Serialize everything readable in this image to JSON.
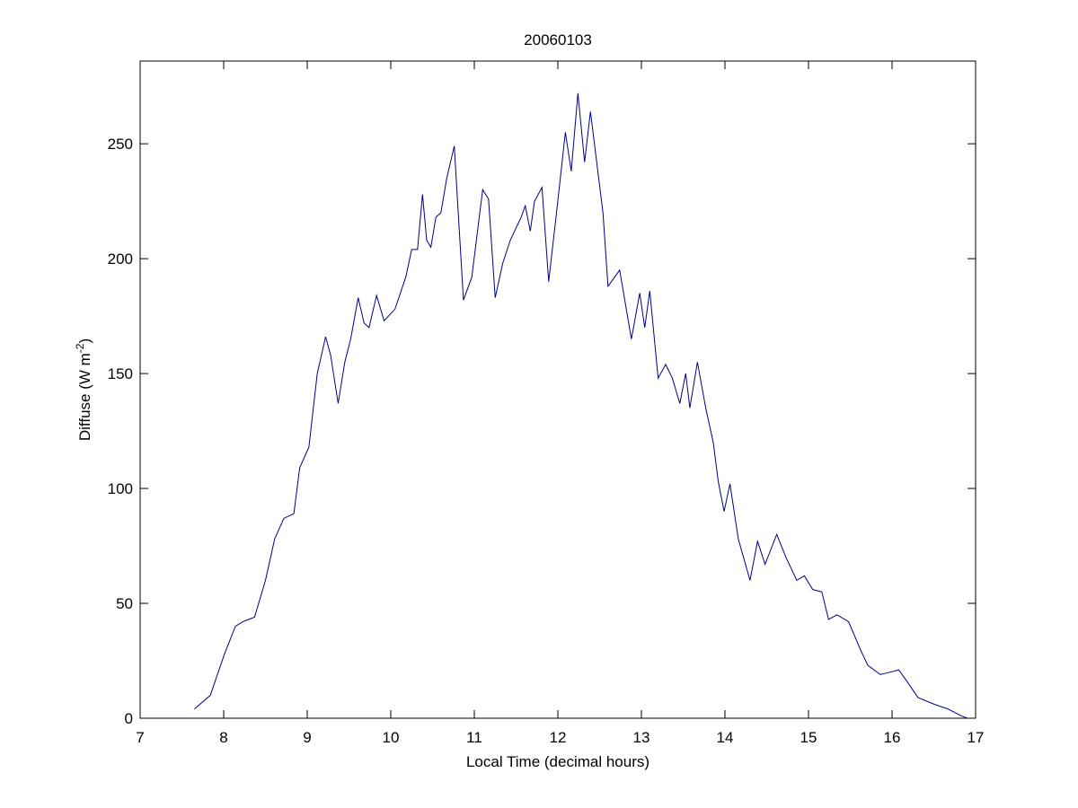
{
  "chart_data": {
    "type": "line",
    "title": "20060103",
    "xlabel": "Local Time (decimal hours)",
    "ylabel": [
      "Diffuse (W m",
      "-2",
      ")"
    ],
    "x": [
      7.65,
      7.84,
      8.01,
      8.14,
      8.23,
      8.37,
      8.5,
      8.61,
      8.72,
      8.84,
      8.91,
      9.02,
      9.12,
      9.22,
      9.28,
      9.37,
      9.45,
      9.52,
      9.61,
      9.68,
      9.74,
      9.83,
      9.92,
      10.05,
      10.18,
      10.25,
      10.32,
      10.38,
      10.43,
      10.48,
      10.54,
      10.6,
      10.67,
      10.76,
      10.87,
      10.97,
      11.1,
      11.17,
      11.25,
      11.34,
      11.43,
      11.56,
      11.61,
      11.67,
      11.72,
      11.81,
      11.89,
      11.99,
      12.09,
      12.16,
      12.24,
      12.32,
      12.39,
      12.54,
      12.6,
      12.74,
      12.88,
      12.98,
      13.04,
      13.1,
      13.2,
      13.29,
      13.37,
      13.46,
      13.53,
      13.58,
      13.67,
      13.77,
      13.86,
      13.92,
      13.99,
      14.06,
      14.16,
      14.3,
      14.39,
      14.48,
      14.62,
      14.73,
      14.86,
      14.95,
      15.05,
      15.16,
      15.24,
      15.34,
      15.48,
      15.62,
      15.71,
      15.86,
      15.97,
      16.08,
      16.18,
      16.31,
      16.51,
      16.67,
      16.83,
      16.9
    ],
    "series": [
      {
        "name": "Diffuse",
        "color": "#00008b",
        "values": [
          4,
          10,
          28,
          40,
          42,
          44,
          60,
          78,
          87,
          89,
          109,
          118,
          150,
          166,
          158,
          137,
          155,
          165,
          183,
          172,
          170,
          184,
          173,
          178,
          192,
          204,
          204,
          228,
          208,
          205,
          218,
          220,
          235,
          249,
          182,
          192,
          230,
          226,
          183,
          198,
          208,
          218,
          223,
          212,
          225,
          231,
          190,
          222,
          255,
          238,
          272,
          242,
          264,
          220,
          188,
          195,
          165,
          185,
          170,
          186,
          148,
          154,
          148,
          137,
          150,
          135,
          155,
          135,
          120,
          103,
          90,
          102,
          78,
          60,
          77,
          67,
          80,
          70,
          60,
          62,
          56,
          55,
          43,
          45,
          42,
          30,
          23,
          19,
          20,
          21,
          16,
          9,
          6,
          4,
          1,
          0
        ]
      }
    ],
    "xlim": [
      7,
      17
    ],
    "ylim": [
      0,
      286
    ],
    "xticks": [
      7,
      8,
      9,
      10,
      11,
      12,
      13,
      14,
      15,
      16,
      17
    ],
    "yticks": [
      0,
      50,
      100,
      150,
      200,
      250
    ],
    "grid": false
  }
}
